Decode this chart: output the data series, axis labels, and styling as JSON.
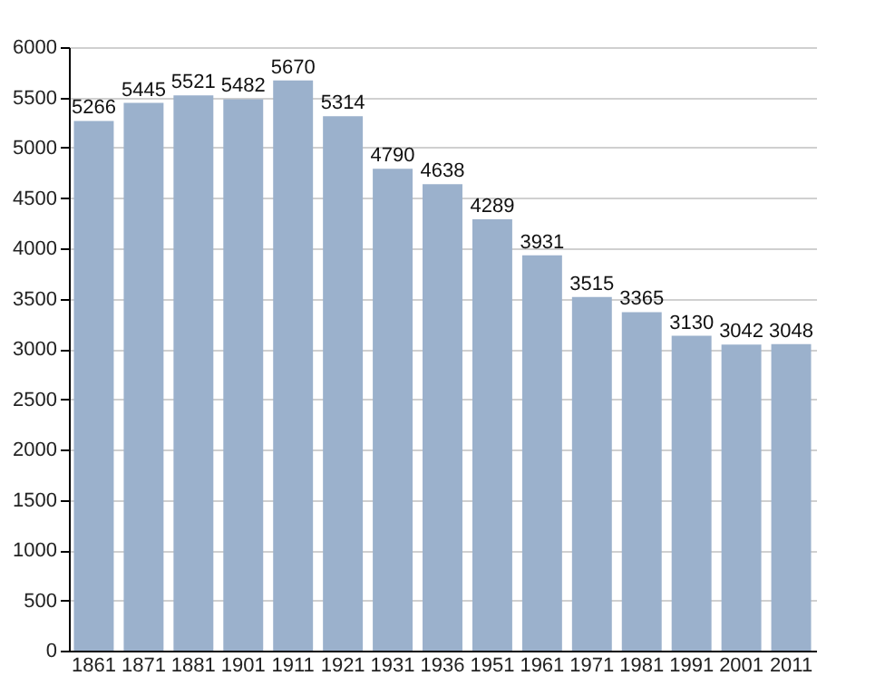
{
  "chart_data": {
    "type": "bar",
    "categories": [
      "1861",
      "1871",
      "1881",
      "1901",
      "1911",
      "1921",
      "1931",
      "1936",
      "1951",
      "1961",
      "1971",
      "1981",
      "1991",
      "2001",
      "2011"
    ],
    "values": [
      5266,
      5445,
      5521,
      5482,
      5670,
      5314,
      4790,
      4638,
      4289,
      3931,
      3515,
      3365,
      3130,
      3042,
      3048
    ],
    "color": "#9bb1cc",
    "ylim": [
      0,
      6000
    ],
    "yticks": [
      0,
      500,
      1000,
      1500,
      2000,
      2500,
      3000,
      3500,
      4000,
      4500,
      5000,
      5500,
      6000
    ],
    "grid": "y",
    "data_labels": true
  }
}
